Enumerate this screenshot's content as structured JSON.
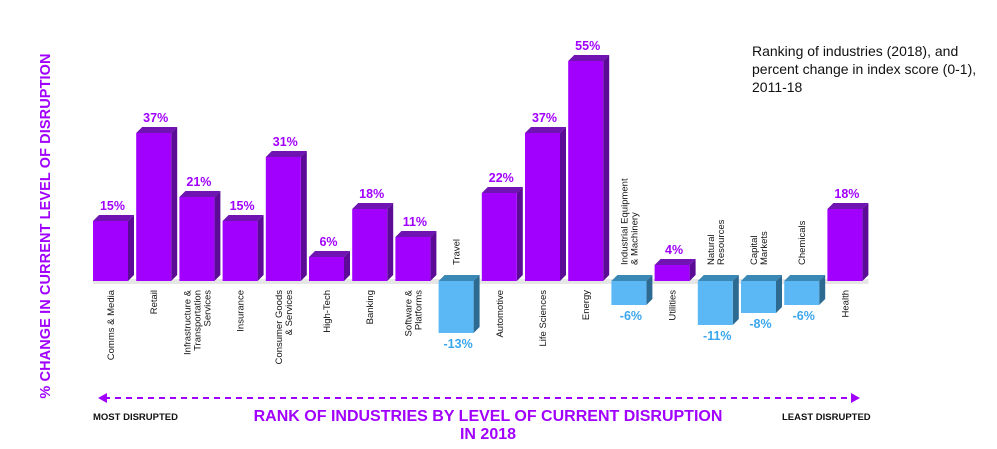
{
  "note": "Ranking of industries (2018), and percent change in index score (0-1), 2011-18",
  "chart_data": {
    "type": "bar",
    "title": "Ranking of industries (2018), and percent change in index score (0-1), 2011-18",
    "xlabel": "RANK OF INDUSTRIES BY LEVEL OF CURRENT DISRUPTION IN 2018",
    "ylabel": "% CHANGE IN CURRENT LEVEL OF DISRUPTION",
    "axis_start_label": "MOST DISRUPTED",
    "axis_end_label": "LEAST DISRUPTED",
    "value_unit": "%",
    "ylim": [
      -13,
      55
    ],
    "grid": false,
    "categories": [
      [
        "Comms & Media"
      ],
      [
        "Retail"
      ],
      [
        "Infrastructure &",
        "Transportation",
        "Services"
      ],
      [
        "Insurance"
      ],
      [
        "Consumer Goods",
        "& Services"
      ],
      [
        "High-Tech"
      ],
      [
        "Banking"
      ],
      [
        "Software &",
        "Platforms"
      ],
      [
        "Travel"
      ],
      [
        "Automotive"
      ],
      [
        "Life Sciences"
      ],
      [
        "Energy"
      ],
      [
        "Industrial Equipment",
        "& Machinery"
      ],
      [
        "Utilities"
      ],
      [
        "Natural",
        "Resources"
      ],
      [
        "Capital",
        "Markets"
      ],
      [
        "Chemicals"
      ],
      [
        "Health"
      ]
    ],
    "values": [
      15,
      37,
      21,
      15,
      31,
      6,
      18,
      11,
      -13,
      22,
      37,
      55,
      -6,
      4,
      -11,
      -8,
      -6,
      18
    ],
    "value_labels": [
      "15%",
      "37%",
      "21%",
      "15%",
      "31%",
      "6%",
      "18%",
      "11%",
      "-13%",
      "22%",
      "37%",
      "55%",
      "-6%",
      "4%",
      "-11%",
      "-8%",
      "-6%",
      "18%"
    ],
    "colors": {
      "positive_front": "#a100ff",
      "positive_side": "#5b0b96",
      "positive_top": "#6f14b2",
      "negative_front": "#5bb8f5",
      "negative_side": "#2c6a91",
      "negative_top": "#3a88b6",
      "base": "#e6e6e6",
      "label_positive": "#a100ff",
      "label_negative": "#3aa6ec",
      "arrow": "#a100ff"
    }
  }
}
